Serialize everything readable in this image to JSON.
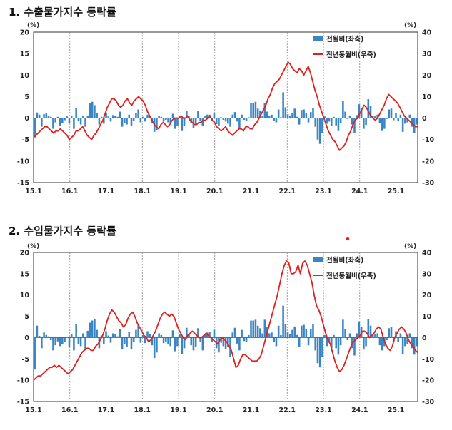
{
  "charts_meta": {
    "bar_color": "#3a86c4",
    "line_color": "#e0201c",
    "dot_color": "#e0201c"
  },
  "chart_data": [
    {
      "type": "bar+line",
      "title": "1. 수출물가지수 등락률",
      "left_unit": "(%)",
      "right_unit": "(%)",
      "left_ylim": [
        -15,
        20
      ],
      "right_ylim": [
        -30,
        40
      ],
      "left_ticks": [
        "20",
        "15",
        "10",
        "5",
        "0",
        "-5",
        "-10",
        "-15"
      ],
      "right_ticks": [
        "40",
        "30",
        "20",
        "10",
        "0",
        "-10",
        "-20",
        "-30"
      ],
      "x_labels": [
        "15.1",
        "16.1",
        "17.1",
        "18.1",
        "19.1",
        "20.1",
        "21.1",
        "22.1",
        "23.1",
        "24.1",
        "25.1"
      ],
      "legend": [
        {
          "name": "전월비(좌축)",
          "kind": "bar"
        },
        {
          "name": "전년동월비(우축)",
          "kind": "line"
        }
      ],
      "series": [
        {
          "name": "전월비(좌축)",
          "axis": "left",
          "kind": "bar",
          "values": [
            -4.5,
            1.3,
            0.8,
            -2.0,
            0.9,
            1.1,
            0.6,
            0.3,
            -2.5,
            -1.0,
            0.3,
            -1.8,
            -1.2,
            -0.5,
            0.4,
            -1.2,
            0.6,
            -2.5,
            2.4,
            -0.6,
            -1.5,
            0.5,
            -2.0,
            0.6,
            3.5,
            3.8,
            3.0,
            1.2,
            -1.5,
            0.3,
            -1.3,
            1.3,
            0.4,
            -0.8,
            0.7,
            0.6,
            0.3,
            1.5,
            -2.0,
            -1.1,
            -1.5,
            0.8,
            -1.8,
            -0.6,
            1.2,
            2.0,
            -1.0,
            0.3,
            -0.8,
            0.8,
            0.6,
            -1.2,
            -3.2,
            -2.8,
            0.6,
            0.3,
            -0.8,
            -0.4,
            -1.0,
            -1.4,
            1.0,
            -2.5,
            -1.8,
            0.4,
            -3.0,
            -1.8,
            1.7,
            0.4,
            -1.1,
            -2.3,
            -1.6,
            1.6,
            -0.6,
            -1.8,
            0.4,
            0.8,
            0.8,
            -0.6,
            1.1,
            -1.4,
            -1.8,
            0.2,
            -0.4,
            -0.8,
            -1.3,
            -2.0,
            0.8,
            1.4,
            -0.8,
            -2.5,
            0.8,
            -0.4,
            -0.6,
            0.2,
            3.5,
            3.5,
            3.8,
            2.2,
            1.8,
            0.6,
            3.5,
            1.5,
            0.6,
            0.8,
            -0.6,
            -1.0,
            2.0,
            0.2,
            6.0,
            2.5,
            0.9,
            0.5,
            1.2,
            2.2,
            0.3,
            -1.5,
            1.9,
            2.0,
            1.2,
            -1.0,
            1.4,
            2.4,
            -2.0,
            -5.0,
            -6.0,
            -3.5,
            0.4,
            -1.3,
            -0.8,
            -1.8,
            0.3,
            -1.7,
            -3.0,
            -1.2,
            4.0,
            1.5,
            -0.2,
            0.6,
            -1.5,
            -3.5,
            0.7,
            3.2,
            2.2,
            -2.5,
            -1.6,
            4.4,
            2.8,
            0.5,
            0.5,
            0.8,
            -1.2,
            -3.0,
            -2.5,
            -0.2,
            2.0,
            2.2,
            -0.5,
            1.2,
            -0.6,
            0.8,
            -3.2,
            -1.3,
            -1.0,
            0.8,
            -2.0,
            -3.5,
            -1.5
          ],
          "line_values": [
            -9,
            -8,
            -7,
            -6,
            -5,
            -4,
            -4,
            -5,
            -6,
            -7,
            -6,
            -6,
            -5,
            -6,
            -7,
            -8,
            -10,
            -9,
            -8,
            -6,
            -6,
            -5,
            -4,
            -6,
            -8,
            -9,
            -10,
            -8,
            -7,
            -5,
            -3,
            -1,
            2,
            5,
            7,
            9,
            9,
            8,
            6,
            5,
            6,
            8,
            9,
            7,
            6,
            8,
            9,
            10,
            9,
            8,
            6,
            3,
            1,
            -1,
            -3,
            -4,
            -5,
            -3,
            -2,
            -3,
            -4,
            -3,
            -1,
            0,
            0,
            0,
            1,
            0,
            0,
            1,
            -1,
            -2,
            -3,
            -3,
            -2,
            -2,
            -1,
            -1,
            0,
            1,
            -1,
            -2,
            -4,
            -5,
            -6,
            -5,
            -4,
            -6,
            -7,
            -8,
            -7,
            -6,
            -5,
            -5,
            -6,
            -4,
            -4,
            -5,
            -5,
            -3,
            -2,
            0,
            2,
            4,
            6,
            9,
            11,
            14,
            16,
            17,
            18,
            20,
            22,
            24,
            26,
            25,
            23,
            22,
            21,
            23,
            22,
            20,
            22,
            24,
            21,
            17,
            13,
            10,
            6,
            3,
            0,
            -3,
            -6,
            -8,
            -10,
            -11,
            -13,
            -15,
            -14,
            -13,
            -11,
            -8,
            -6,
            -3,
            -1,
            0,
            2,
            4,
            6,
            5,
            3,
            1,
            0,
            -1,
            0,
            2,
            4,
            6,
            9,
            11,
            10,
            9,
            8,
            7,
            5,
            3,
            1,
            0,
            -1,
            -2,
            -3,
            -4,
            -4
          ]
        }
      ]
    },
    {
      "type": "bar+line",
      "title": "2. 수입물가지수 등락률",
      "left_unit": "(%)",
      "right_unit": "(%)",
      "left_ylim": [
        -15,
        20
      ],
      "right_ylim": [
        -30,
        40
      ],
      "left_ticks": [
        "20",
        "15",
        "10",
        "5",
        "0",
        "-5",
        "-10",
        "-15"
      ],
      "right_ticks": [
        "40",
        "30",
        "20",
        "10",
        "0",
        "-10",
        "-20",
        "-30"
      ],
      "x_labels": [
        "15.1",
        "16.1",
        "17.1",
        "18.1",
        "19.1",
        "20.1",
        "21.1",
        "22.1",
        "23.1",
        "24.1",
        "25.1"
      ],
      "legend": [
        {
          "name": "전월비(좌축)",
          "kind": "bar"
        },
        {
          "name": "전년동월비(우축)",
          "kind": "line"
        }
      ],
      "series": [
        {
          "name": "전월비(좌축)",
          "axis": "left",
          "kind": "bar",
          "values": [
            -7.5,
            2.8,
            0.4,
            -2.5,
            1.2,
            0.6,
            0.3,
            -0.6,
            -3.0,
            -1.8,
            -0.9,
            -2.0,
            -1.5,
            -1.0,
            0.2,
            -2.3,
            0.8,
            -3.0,
            3.2,
            -1.5,
            -2.0,
            1.0,
            -3.0,
            1.6,
            3.5,
            4.0,
            4.3,
            1.8,
            -2.5,
            0.5,
            -1.5,
            1.5,
            0.5,
            -1.2,
            1.0,
            0.9,
            0.3,
            2.0,
            -2.8,
            -1.5,
            -2.2,
            1.3,
            -2.8,
            -1.0,
            1.8,
            3.2,
            -1.2,
            0.6,
            -1.3,
            1.5,
            0.9,
            -1.8,
            -4.8,
            -3.5,
            1.0,
            0.6,
            -1.3,
            -0.9,
            -1.5,
            -2.0,
            1.7,
            -3.2,
            -2.0,
            0.9,
            -3.8,
            -2.5,
            2.3,
            0.9,
            -1.8,
            -3.0,
            -2.2,
            2.2,
            -1.0,
            -3.0,
            0.9,
            1.2,
            1.3,
            -1.0,
            1.8,
            -2.5,
            -3.5,
            -1.2,
            -2.0,
            -2.8,
            -2.2,
            -4.5,
            1.2,
            2.3,
            -1.4,
            -3.0,
            1.8,
            -0.8,
            -1.0,
            0.6,
            4.0,
            4.0,
            4.2,
            2.8,
            2.2,
            1.0,
            4.2,
            2.5,
            1.0,
            1.2,
            -1.0,
            -2.0,
            2.8,
            0.6,
            7.5,
            3.2,
            1.2,
            0.8,
            1.8,
            2.6,
            0.6,
            -2.2,
            2.8,
            3.0,
            2.0,
            -1.8,
            2.0,
            3.2,
            -3.0,
            -6.0,
            -7.0,
            -4.5,
            0.6,
            -2.0,
            -1.2,
            -2.5,
            0.6,
            -2.5,
            -4.0,
            -1.8,
            4.2,
            2.0,
            -0.6,
            1.0,
            -2.5,
            -4.2,
            1.0,
            3.8,
            2.5,
            -2.8,
            -2.0,
            4.3,
            2.8,
            0.8,
            0.8,
            1.0,
            -1.8,
            -3.0,
            -2.0,
            -0.6,
            2.2,
            2.5,
            -1.0,
            1.5,
            -1.0,
            1.0,
            -3.8,
            -2.0,
            -1.5,
            1.0,
            -2.5,
            -4.0,
            -2.0
          ],
          "line_values": [
            -20,
            -19,
            -18,
            -18,
            -17,
            -16,
            -15,
            -14,
            -14,
            -13,
            -14,
            -13,
            -14,
            -15,
            -16,
            -17,
            -16,
            -15,
            -13,
            -11,
            -9,
            -7,
            -6,
            -5,
            -5,
            -6,
            -6,
            -4,
            -3,
            -1,
            1,
            4,
            8,
            11,
            13,
            12,
            10,
            8,
            7,
            5,
            6,
            9,
            11,
            12,
            10,
            7,
            5,
            3,
            1,
            0,
            -2,
            -1,
            1,
            3,
            6,
            9,
            11,
            12,
            11,
            10,
            11,
            10,
            7,
            4,
            2,
            0,
            -1,
            1,
            2,
            3,
            2,
            1,
            0,
            0,
            1,
            2,
            1,
            0,
            -1,
            -2,
            -3,
            -1,
            0,
            -1,
            -2,
            -4,
            -6,
            -10,
            -14,
            -13,
            -10,
            -8,
            -8,
            -9,
            -10,
            -11,
            -11,
            -11,
            -10,
            -8,
            -4,
            0,
            4,
            8,
            12,
            16,
            20,
            25,
            30,
            34,
            36,
            35,
            30,
            30,
            31,
            34,
            30,
            35,
            36,
            34,
            30,
            26,
            20,
            15,
            13,
            10,
            6,
            2,
            -1,
            -3,
            -7,
            -11,
            -14,
            -16,
            -15,
            -13,
            -10,
            -7,
            -4,
            -2,
            -1,
            0,
            1,
            3,
            3,
            2,
            0,
            1,
            2,
            4,
            5,
            4,
            0,
            -3,
            -5,
            -6,
            -4,
            0,
            2,
            4,
            5,
            4,
            2,
            -1,
            -3,
            -4,
            -6,
            -7
          ]
        }
      ]
    }
  ]
}
